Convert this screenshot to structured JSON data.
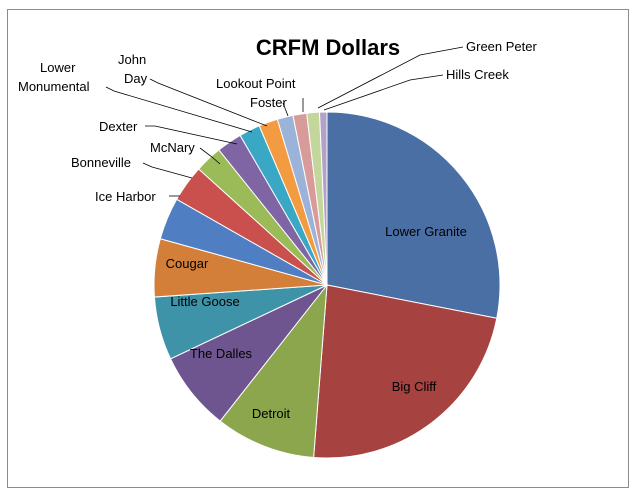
{
  "chart_data": {
    "type": "pie",
    "title": "CRFM Dollars",
    "legend": "none",
    "slices": [
      {
        "label": "Lower Granite",
        "value": 28.5,
        "color": "#4a6fa5"
      },
      {
        "label": "Big Cliff",
        "value": 23.5,
        "color": "#a64341"
      },
      {
        "label": "Detroit",
        "value": 9.5,
        "color": "#8ba64d"
      },
      {
        "label": "The Dalles",
        "value": 7.5,
        "color": "#6e558f"
      },
      {
        "label": "Little Goose",
        "value": 6.0,
        "color": "#3f93a8"
      },
      {
        "label": "Cougar",
        "value": 5.5,
        "color": "#d47f39"
      },
      {
        "label": "Ice Harbor",
        "value": 4.0,
        "color": "#4f7fc2"
      },
      {
        "label": "Bonneville",
        "value": 3.5,
        "color": "#c9504c"
      },
      {
        "label": "McNary",
        "value": 2.6,
        "color": "#9bbb59"
      },
      {
        "label": "Dexter",
        "value": 2.4,
        "color": "#7f65a3"
      },
      {
        "label": "Lower Monumental",
        "value": 2.0,
        "color": "#3aa7c4"
      },
      {
        "label": "John Day",
        "value": 1.8,
        "color": "#f39b41"
      },
      {
        "label": "Foster",
        "value": 1.5,
        "color": "#9cb3d9"
      },
      {
        "label": "Lookout Point",
        "value": 1.3,
        "color": "#d99b9a"
      },
      {
        "label": "Green Peter",
        "value": 1.2,
        "color": "#c3d69b"
      },
      {
        "label": "Hills Creek",
        "value": 0.7,
        "color": "#b3a2c7"
      }
    ]
  }
}
